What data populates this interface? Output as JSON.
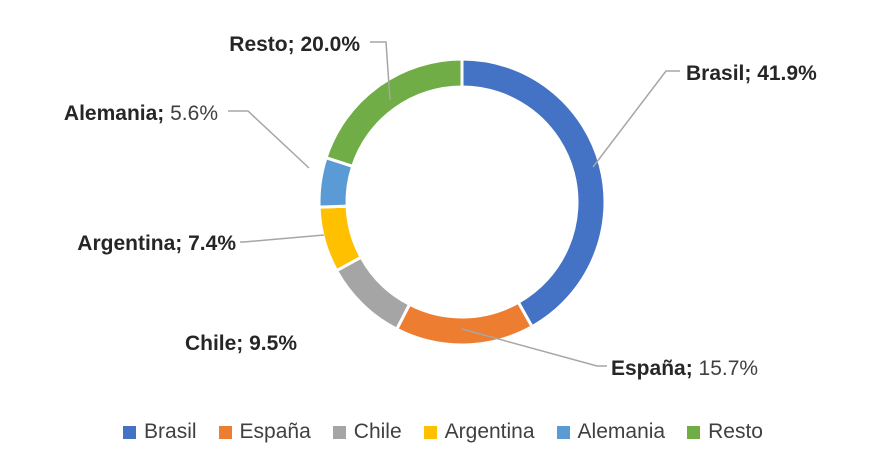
{
  "chart_data": {
    "type": "pie",
    "style": "donut",
    "title": "",
    "slices": [
      {
        "name": "Brasil",
        "value": 41.9,
        "label": "Brasil; 41.9%",
        "color": "#4472C4",
        "label_weight": "bold"
      },
      {
        "name": "España",
        "value": 15.7,
        "label_name": "España;",
        "label_value": "15.7%",
        "color": "#ED7D31",
        "label_weight": "mixed"
      },
      {
        "name": "Chile",
        "value": 9.5,
        "label": "Chile; 9.5%",
        "color": "#A5A5A5",
        "label_weight": "bold"
      },
      {
        "name": "Argentina",
        "value": 7.4,
        "label": "Argentina; 7.4%",
        "color": "#FFC000",
        "label_weight": "bold"
      },
      {
        "name": "Alemania",
        "value": 5.6,
        "label_name": "Alemania;",
        "label_value": "5.6%",
        "color": "#5B9BD5",
        "label_weight": "mixed"
      },
      {
        "name": "Resto",
        "value": 20.0,
        "label": "Resto; 20.0%",
        "color": "#70AD47",
        "label_weight": "bold"
      }
    ],
    "legend": {
      "placement": "bottom",
      "items": [
        "Brasil",
        "España",
        "Chile",
        "Argentina",
        "Alemania",
        "Resto"
      ]
    }
  }
}
